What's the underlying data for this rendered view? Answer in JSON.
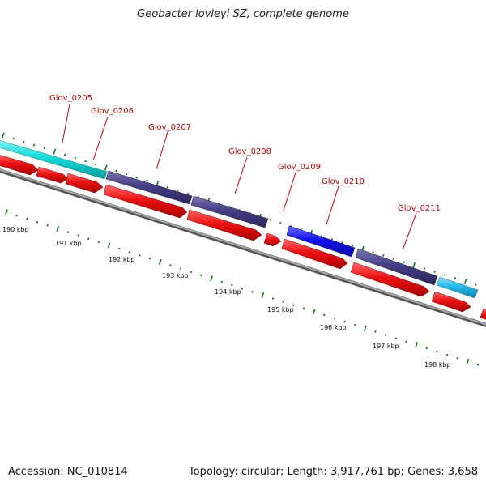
{
  "title": "Geobacter lovleyi SZ, complete genome",
  "footer": {
    "accession": "Accession: NC_010814",
    "summary": "Topology: circular; Length: 3,917,761 bp; Genes: 3,658"
  },
  "colors": {
    "cds": "#ee1111",
    "gene_label": "#cc0000",
    "tick": "#117711",
    "backbone": "#888888",
    "cyan": "#11dddd",
    "slate": "#443f88",
    "blue": "#1111ee",
    "light_blue": "#22bbee"
  },
  "kbp_labels": [
    "190 kbp",
    "191 kbp",
    "192 kbp",
    "193 kbp",
    "194 kbp",
    "195 kbp",
    "196 kbp",
    "197 kbp",
    "198 kbp"
  ],
  "gene_labels": [
    {
      "name": "Glov_0205"
    },
    {
      "name": "Glov_0206"
    },
    {
      "name": "Glov_0207"
    },
    {
      "name": "Glov_0208"
    },
    {
      "name": "Glov_0209"
    },
    {
      "name": "Glov_0210"
    },
    {
      "name": "Glov_0211"
    }
  ]
}
